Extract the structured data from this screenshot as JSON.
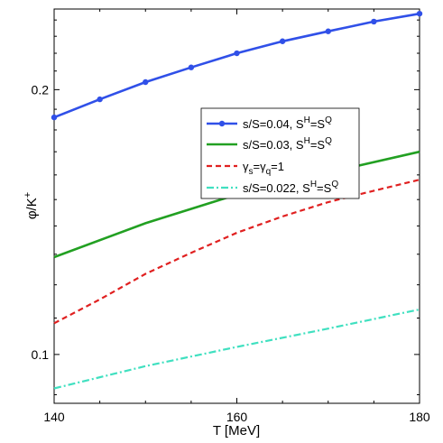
{
  "chart_data": {
    "type": "line",
    "xlabel_main": "T [MeV]",
    "ylabel_main": "φ/K",
    "ylabel_sup": "+",
    "xlim": [
      140,
      180
    ],
    "ylim": [
      0.088,
      0.247
    ],
    "y_log_scale": true,
    "grid": false,
    "legend_position": "center-right",
    "x_ticks": [
      140,
      160,
      180
    ],
    "x_tick_labels": [
      "140",
      "160",
      "180"
    ],
    "y_ticks": [
      0.1,
      0.2
    ],
    "y_tick_labels": [
      "0.1",
      "0.2"
    ],
    "series": [
      {
        "style": "solid-markers",
        "color": "#3050e8",
        "legend": {
          "main": "s/S=0.04, S",
          "sup1": "H",
          "mid": "=S",
          "sup2": "Q",
          "sub1": "",
          "sub2": ""
        },
        "x": [
          140,
          145,
          150,
          155,
          160,
          165,
          170,
          175,
          180
        ],
        "y": [
          0.186,
          0.195,
          0.204,
          0.212,
          0.22,
          0.227,
          0.233,
          0.239,
          0.244
        ]
      },
      {
        "style": "solid",
        "color": "#22a022",
        "legend": {
          "main": "s/S=0.03, S",
          "sup1": "H",
          "mid": "=S",
          "sup2": "Q",
          "sub1": "",
          "sub2": ""
        },
        "x": [
          140,
          150,
          160,
          170,
          180
        ],
        "y": [
          0.129,
          0.141,
          0.152,
          0.161,
          0.17
        ]
      },
      {
        "style": "dashed",
        "color": "#e02020",
        "legend": {
          "main": "γ",
          "sub1": "s",
          "mid": "=γ",
          "sub2": "q",
          "tail": "=1",
          "sup1": "",
          "sup2": ""
        },
        "x": [
          140,
          145,
          150,
          155,
          160,
          165,
          170,
          175,
          180
        ],
        "y": [
          0.1085,
          0.1155,
          0.1235,
          0.1305,
          0.1375,
          0.1435,
          0.149,
          0.1535,
          0.158
        ]
      },
      {
        "style": "dashdot",
        "color": "#40e0c0",
        "legend": {
          "main": "s/S=0.022, S",
          "sup1": "H",
          "mid": "=S",
          "sup2": "Q",
          "sub1": "",
          "sub2": ""
        },
        "x": [
          140,
          150,
          160,
          170,
          180
        ],
        "y": [
          0.0915,
          0.097,
          0.102,
          0.107,
          0.1125
        ]
      }
    ]
  }
}
